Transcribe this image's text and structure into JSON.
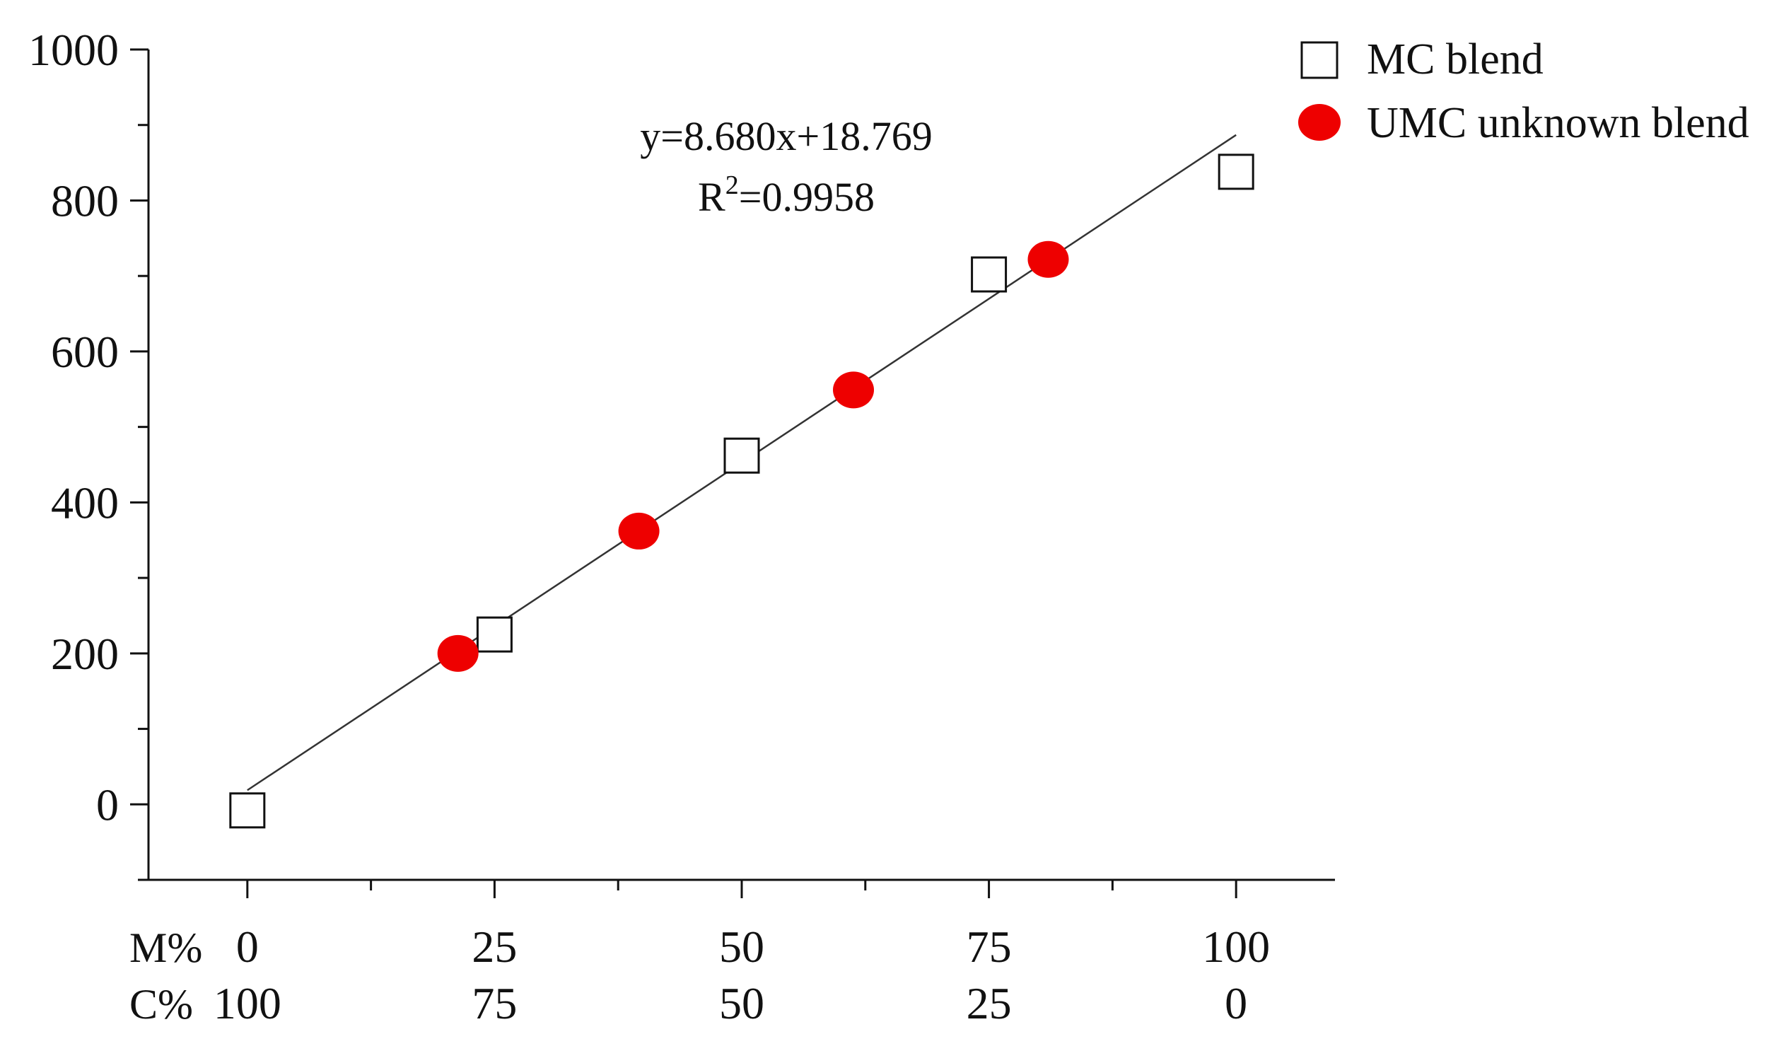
{
  "chart_data": {
    "type": "scatter",
    "title": "",
    "xlabel": "",
    "ylabel": "",
    "xlim": [
      -10,
      110
    ],
    "ylim": [
      -100,
      1000
    ],
    "yticks": [
      "0",
      "200",
      "400",
      "600",
      "800",
      "1000"
    ],
    "x_tick_rows": [
      {
        "label": "M%",
        "ticks": [
          "0",
          "25",
          "50",
          "75",
          "100"
        ]
      },
      {
        "label": "C%",
        "ticks": [
          "100",
          "75",
          "50",
          "25",
          "0"
        ]
      }
    ],
    "series": [
      {
        "name": "MC blend",
        "marker": "open-square",
        "color": "#111111",
        "x": [
          0,
          25,
          50,
          75,
          100
        ],
        "y": [
          -8,
          225,
          462,
          702,
          838
        ]
      },
      {
        "name": "UMC unknown blend",
        "marker": "filled-circle",
        "color": "#ee0000",
        "x": [
          21.3,
          39.6,
          61.3,
          81.0
        ],
        "y": [
          200,
          362,
          549,
          722
        ]
      }
    ],
    "fit_line": {
      "slope": 8.68,
      "intercept": 18.769,
      "x_range": [
        0,
        100
      ],
      "color": "#333333"
    },
    "annotation": {
      "equation": "y=8.680x+18.769",
      "r2_prefix": "R",
      "r2_sup": "2",
      "r2_value": "=0.9958"
    },
    "legend_position": "top-right",
    "grid": false
  }
}
